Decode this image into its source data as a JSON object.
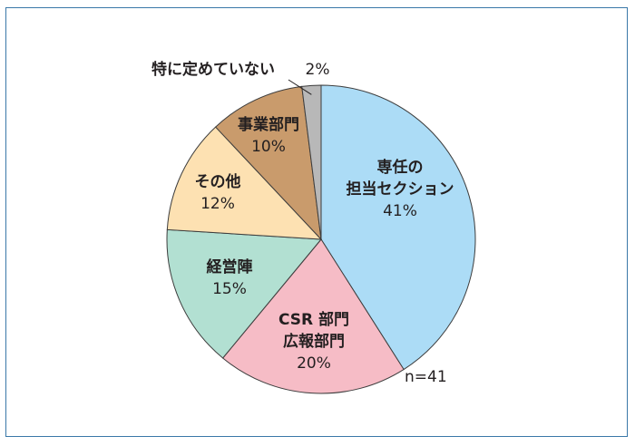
{
  "chart_data": {
    "type": "pie",
    "note": "n=41",
    "slices": [
      {
        "name_lines": [
          "専任の",
          "担当セクション"
        ],
        "value": 41,
        "pct_label": "41%",
        "color": "#acdcf6"
      },
      {
        "name_lines": [
          "CSR 部門",
          "広報部門"
        ],
        "value": 20,
        "pct_label": "20%",
        "color": "#f6bcc6"
      },
      {
        "name_lines": [
          "経営陣"
        ],
        "value": 15,
        "pct_label": "15%",
        "color": "#b2e0d2"
      },
      {
        "name_lines": [
          "その他"
        ],
        "value": 12,
        "pct_label": "12%",
        "color": "#fde1b2"
      },
      {
        "name_lines": [
          "事業部門"
        ],
        "value": 10,
        "pct_label": "10%",
        "color": "#c99b6c"
      },
      {
        "name_lines": [
          "特に定めていない"
        ],
        "value": 2,
        "pct_label": "2%",
        "color": "#b8b8b8"
      }
    ]
  }
}
